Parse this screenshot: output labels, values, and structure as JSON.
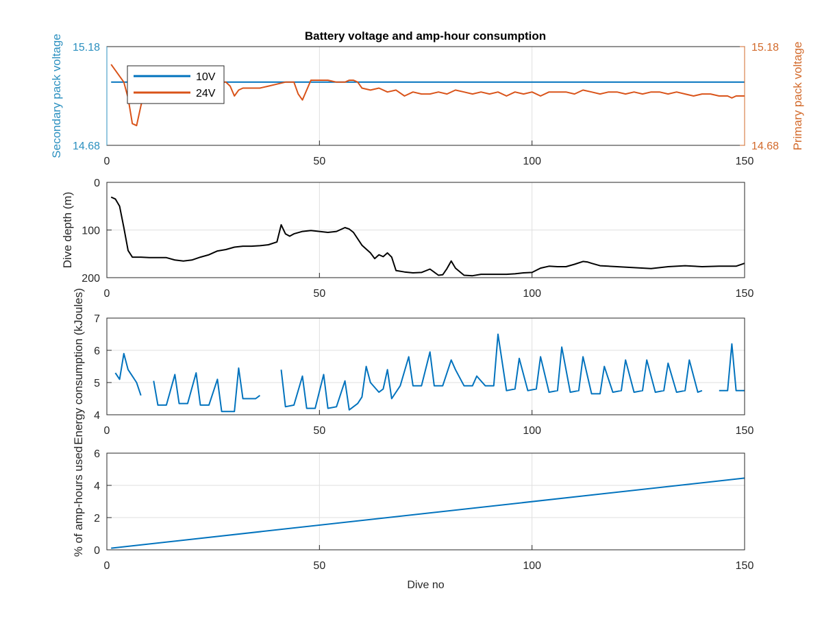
{
  "chart_data": [
    {
      "type": "line",
      "title": "Battery voltage and amp-hour consumption",
      "xlabel": "",
      "ylabel_left": "Secondary pack voltage",
      "ylabel_right": "Primary pack voltage",
      "xlim": [
        0,
        150
      ],
      "ylim_left": [
        14.68,
        15.18
      ],
      "ylim_right": [
        14.68,
        15.18
      ],
      "xticks": [
        "0",
        "50",
        "100",
        "150"
      ],
      "yticks_left": [
        "14.68",
        "15.18"
      ],
      "yticks_right": [
        "14.68",
        "15.18"
      ],
      "grid": true,
      "legend": "top-left",
      "colors": {
        "left_axis": "#2a8fbf",
        "right_axis": "#d2692a"
      },
      "series": [
        {
          "name": "10V",
          "axis": "left",
          "color": "#0072bd",
          "x": [
            1,
            150
          ],
          "y": [
            15.0,
            15.0
          ]
        },
        {
          "name": "24V",
          "axis": "right",
          "color": "#d95319",
          "x": [
            1,
            2,
            3,
            4,
            5,
            6,
            7,
            8,
            9,
            10,
            12,
            14,
            16,
            18,
            20,
            22,
            24,
            26,
            28,
            29,
            30,
            31,
            32,
            34,
            36,
            38,
            40,
            42,
            44,
            45,
            46,
            48,
            50,
            52,
            54,
            56,
            57,
            58,
            59,
            60,
            62,
            64,
            66,
            68,
            70,
            72,
            74,
            76,
            78,
            80,
            82,
            84,
            86,
            88,
            90,
            92,
            94,
            96,
            98,
            100,
            102,
            104,
            106,
            108,
            110,
            112,
            114,
            116,
            118,
            120,
            122,
            124,
            126,
            128,
            130,
            132,
            134,
            136,
            138,
            140,
            142,
            144,
            146,
            147,
            148,
            149,
            150
          ],
          "y": [
            15.09,
            15.06,
            15.03,
            15.0,
            14.92,
            14.79,
            14.78,
            14.88,
            14.97,
            15.0,
            15.0,
            15.0,
            15.0,
            15.0,
            15.0,
            15.0,
            15.0,
            15.0,
            15.0,
            14.98,
            14.93,
            14.96,
            14.97,
            14.97,
            14.97,
            14.98,
            14.99,
            15.0,
            15.0,
            14.94,
            14.91,
            15.01,
            15.01,
            15.01,
            15.0,
            15.0,
            15.01,
            15.01,
            15.0,
            14.97,
            14.96,
            14.97,
            14.95,
            14.96,
            14.93,
            14.95,
            14.94,
            14.94,
            14.95,
            14.94,
            14.96,
            14.95,
            14.94,
            14.95,
            14.94,
            14.95,
            14.93,
            14.95,
            14.94,
            14.95,
            14.93,
            14.95,
            14.95,
            14.95,
            14.94,
            14.96,
            14.95,
            14.94,
            14.95,
            14.95,
            14.94,
            14.95,
            14.94,
            14.95,
            14.95,
            14.94,
            14.95,
            14.94,
            14.93,
            14.94,
            14.94,
            14.93,
            14.93,
            14.92,
            14.93,
            14.93,
            14.93
          ]
        }
      ]
    },
    {
      "type": "line",
      "title": "",
      "xlabel": "",
      "ylabel": "Dive depth (m)",
      "xlim": [
        0,
        150
      ],
      "ylim": [
        0,
        200
      ],
      "y_reversed": true,
      "xticks": [
        "0",
        "50",
        "100",
        "150"
      ],
      "yticks": [
        "0",
        "100",
        "200"
      ],
      "grid": true,
      "series": [
        {
          "color": "#000000",
          "x": [
            1,
            2,
            3,
            4,
            5,
            6,
            8,
            10,
            12,
            14,
            16,
            18,
            20,
            22,
            24,
            26,
            28,
            30,
            32,
            34,
            36,
            38,
            40,
            41,
            42,
            43,
            44,
            46,
            48,
            50,
            52,
            54,
            56,
            57,
            58,
            60,
            62,
            63,
            64,
            65,
            66,
            67,
            68,
            70,
            72,
            74,
            76,
            78,
            79,
            80,
            81,
            82,
            84,
            86,
            88,
            90,
            92,
            94,
            96,
            98,
            100,
            102,
            104,
            106,
            108,
            110,
            112,
            113,
            114,
            116,
            118,
            120,
            124,
            128,
            132,
            136,
            140,
            144,
            148,
            150
          ],
          "y": [
            31,
            35,
            50,
            95,
            143,
            157,
            157,
            158,
            158,
            158,
            163,
            165,
            163,
            157,
            152,
            144,
            141,
            136,
            134,
            134,
            133,
            131,
            125,
            89,
            108,
            113,
            108,
            103,
            101,
            103,
            105,
            103,
            95,
            98,
            105,
            132,
            148,
            160,
            152,
            156,
            148,
            157,
            185,
            188,
            190,
            189,
            182,
            195,
            194,
            181,
            165,
            180,
            195,
            196,
            193,
            193,
            193,
            193,
            192,
            190,
            189,
            180,
            176,
            177,
            177,
            172,
            166,
            167,
            170,
            175,
            176,
            177,
            179,
            181,
            177,
            175,
            177,
            176,
            176,
            170
          ]
        }
      ]
    },
    {
      "type": "line",
      "title": "",
      "xlabel": "",
      "ylabel": "Energy consumption (kJoules)",
      "xlim": [
        0,
        150
      ],
      "ylim": [
        4,
        7
      ],
      "xticks": [
        "0",
        "50",
        "100",
        "150"
      ],
      "yticks": [
        "4",
        "5",
        "6",
        "7"
      ],
      "grid": true,
      "series": [
        {
          "color": "#0072bd",
          "segments": [
            {
              "x": [
                2,
                3,
                4,
                5,
                6,
                7,
                8
              ],
              "y": [
                5.3,
                5.1,
                5.9,
                5.4,
                5.2,
                5.0,
                4.6
              ]
            },
            {
              "x": [
                11,
                12,
                14,
                16,
                17,
                19,
                21,
                22,
                24,
                26,
                27,
                28,
                30,
                31,
                32,
                33,
                35,
                36
              ],
              "y": [
                5.05,
                4.3,
                4.3,
                5.25,
                4.35,
                4.35,
                5.3,
                4.3,
                4.3,
                5.1,
                4.1,
                4.1,
                4.1,
                5.45,
                4.5,
                4.5,
                4.5,
                4.6
              ]
            },
            {
              "x": [
                41,
                42,
                44,
                46,
                47,
                49,
                51,
                52,
                54,
                56,
                57,
                59,
                60,
                61,
                62,
                64,
                65,
                66,
                67,
                69,
                71,
                72,
                74,
                76,
                77,
                79,
                81,
                82,
                84,
                86,
                87,
                89,
                91,
                92,
                94,
                96,
                97,
                99,
                101,
                102,
                104,
                106,
                107,
                109,
                111,
                112,
                114,
                116,
                117,
                119,
                121,
                122,
                124,
                126,
                127,
                129,
                131,
                132,
                134,
                136,
                137,
                139,
                140
              ],
              "y": [
                5.4,
                4.25,
                4.3,
                5.2,
                4.2,
                4.2,
                5.25,
                4.2,
                4.25,
                5.05,
                4.15,
                4.35,
                4.55,
                5.5,
                5.0,
                4.7,
                4.8,
                5.4,
                4.5,
                4.9,
                5.8,
                4.9,
                4.9,
                5.95,
                4.9,
                4.9,
                5.7,
                5.4,
                4.9,
                4.9,
                5.2,
                4.9,
                4.9,
                6.5,
                4.75,
                4.8,
                5.75,
                4.75,
                4.8,
                5.8,
                4.7,
                4.75,
                6.1,
                4.7,
                4.75,
                5.8,
                4.65,
                4.65,
                5.5,
                4.7,
                4.75,
                5.7,
                4.7,
                4.75,
                5.7,
                4.7,
                4.75,
                5.6,
                4.7,
                4.75,
                5.7,
                4.7,
                4.75
              ]
            },
            {
              "x": [
                144,
                146,
                147,
                148,
                149,
                150
              ],
              "y": [
                4.75,
                4.75,
                6.2,
                4.75,
                4.75,
                4.75
              ]
            }
          ]
        }
      ]
    },
    {
      "type": "line",
      "title": "",
      "xlabel": "Dive no",
      "ylabel": "% of amp-hours used",
      "xlim": [
        0,
        150
      ],
      "ylim": [
        0,
        6
      ],
      "xticks": [
        "0",
        "50",
        "100",
        "150"
      ],
      "yticks": [
        "0",
        "2",
        "4",
        "6"
      ],
      "grid": true,
      "series": [
        {
          "color": "#0072bd",
          "x": [
            1,
            150
          ],
          "y": [
            0.1,
            4.45
          ]
        }
      ]
    }
  ]
}
